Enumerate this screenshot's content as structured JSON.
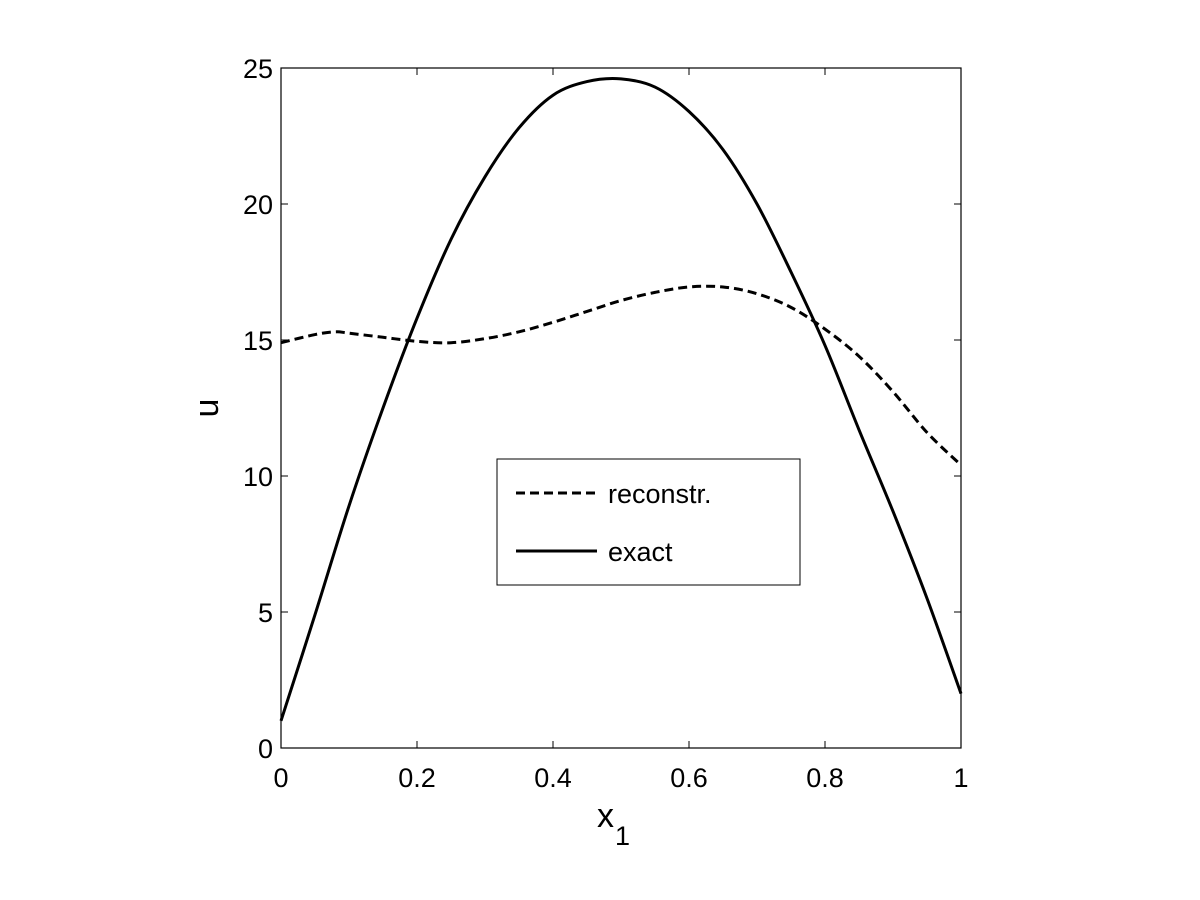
{
  "chart_data": {
    "type": "line",
    "title": "",
    "xlabel": "x",
    "xlabel_subscript": "1",
    "ylabel": "u",
    "xlim": [
      0,
      1
    ],
    "ylim": [
      0,
      25
    ],
    "xticks": [
      "0",
      "0.2",
      "0.4",
      "0.6",
      "0.8",
      "1"
    ],
    "yticks": [
      "0",
      "5",
      "10",
      "15",
      "20",
      "25"
    ],
    "grid": false,
    "legend_position": "center",
    "series": [
      {
        "name": "reconstr.",
        "style": "dashed",
        "color": "#000000",
        "x": [
          0,
          0.05,
          0.08,
          0.1,
          0.15,
          0.2,
          0.25,
          0.3,
          0.35,
          0.4,
          0.45,
          0.5,
          0.55,
          0.6,
          0.65,
          0.7,
          0.75,
          0.8,
          0.85,
          0.9,
          0.95,
          1.0
        ],
        "y": [
          14.9,
          15.2,
          15.3,
          15.25,
          15.1,
          14.95,
          14.9,
          15.05,
          15.3,
          15.65,
          16.05,
          16.45,
          16.75,
          16.95,
          16.95,
          16.7,
          16.2,
          15.4,
          14.4,
          13.1,
          11.6,
          10.4
        ]
      },
      {
        "name": "exact",
        "style": "solid",
        "color": "#000000",
        "x": [
          0,
          0.05,
          0.1,
          0.15,
          0.2,
          0.25,
          0.3,
          0.35,
          0.4,
          0.45,
          0.5,
          0.55,
          0.6,
          0.65,
          0.7,
          0.75,
          0.8,
          0.85,
          0.9,
          0.95,
          1.0
        ],
        "y": [
          1.0,
          4.9,
          8.9,
          12.5,
          15.8,
          18.7,
          21.0,
          22.8,
          24.0,
          24.5,
          24.6,
          24.3,
          23.4,
          22.0,
          20.0,
          17.5,
          14.8,
          11.7,
          8.7,
          5.5,
          2.0
        ]
      }
    ]
  }
}
